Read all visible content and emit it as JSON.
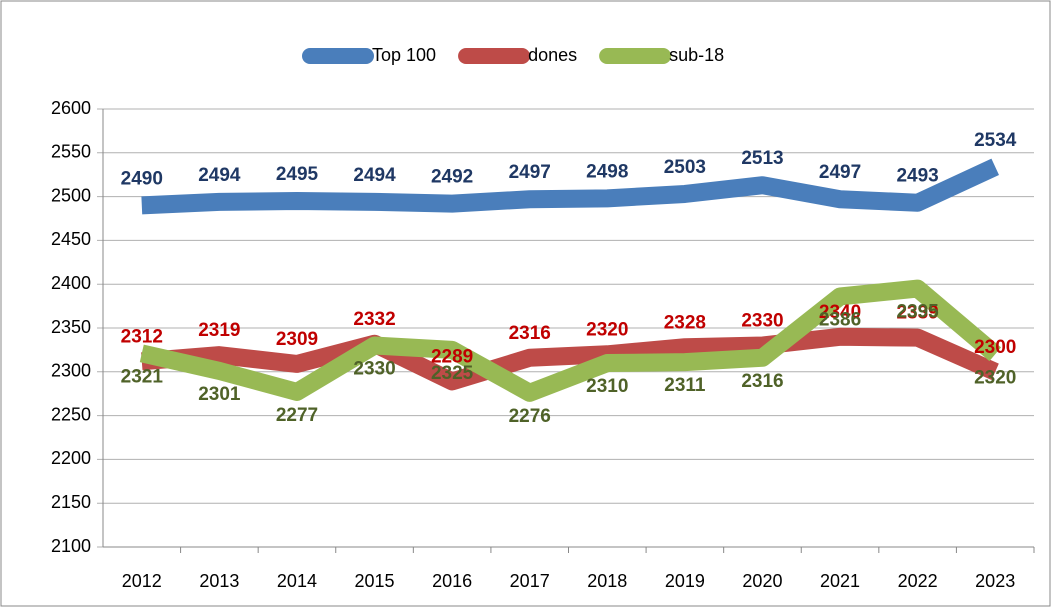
{
  "chart_data": {
    "type": "line",
    "categories": [
      "2012",
      "2013",
      "2014",
      "2015",
      "2016",
      "2017",
      "2018",
      "2019",
      "2020",
      "2021",
      "2022",
      "2023"
    ],
    "series": [
      {
        "name": "Top 100",
        "color": "#4a7ebb",
        "label_color": "#1f3864",
        "values": [
          2490,
          2494,
          2495,
          2494,
          2492,
          2497,
          2498,
          2503,
          2513,
          2497,
          2493,
          2534
        ]
      },
      {
        "name": "dones",
        "color": "#be4b48",
        "label_color": "#c00000",
        "values": [
          2312,
          2319,
          2309,
          2332,
          2289,
          2316,
          2320,
          2328,
          2330,
          2340,
          2339,
          2300
        ]
      },
      {
        "name": "sub-18",
        "color": "#98b954",
        "label_color": "#4f6228",
        "values": [
          2321,
          2301,
          2277,
          2330,
          2325,
          2276,
          2310,
          2311,
          2316,
          2386,
          2395,
          2320
        ]
      }
    ],
    "ylim": [
      2100,
      2600
    ],
    "yticks": [
      2100,
      2150,
      2200,
      2250,
      2300,
      2350,
      2400,
      2450,
      2500,
      2550,
      2600
    ],
    "grid": true,
    "legend": "top"
  }
}
